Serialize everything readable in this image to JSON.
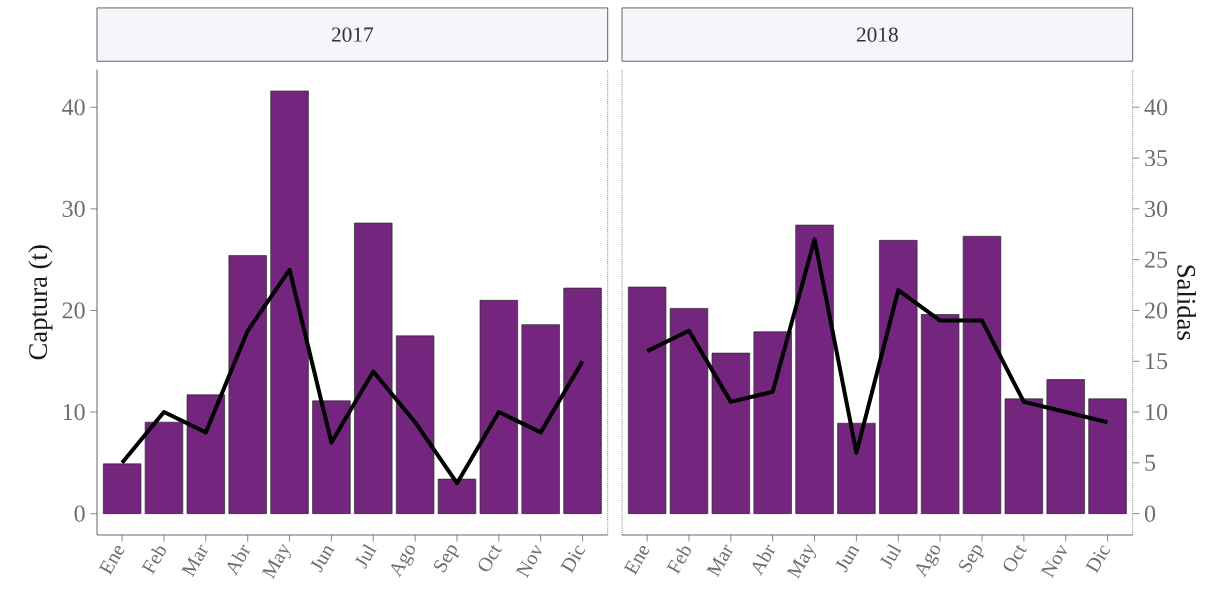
{
  "chart_data": [
    {
      "type": "bar",
      "title": "2017",
      "ylabel": "Captura (t)",
      "categories": [
        "Ene",
        "Feb",
        "Mar",
        "Abr",
        "May",
        "Jun",
        "Jul",
        "Ago",
        "Sep",
        "Oct",
        "Nov",
        "Dic"
      ],
      "series": [
        {
          "color": "#74267f",
          "values": [
            4.9,
            9.0,
            11.7,
            25.4,
            41.6,
            11.1,
            28.6,
            17.5,
            3.4,
            21.0,
            18.6,
            22.2
          ]
        },
        {
          "type": "line",
          "color": "#000000",
          "values": [
            5,
            10,
            8,
            18,
            24,
            7,
            14,
            9,
            3,
            10,
            8,
            15
          ]
        }
      ],
      "ylim": [
        -2.1,
        43.7
      ],
      "yticks": [
        0,
        10,
        20,
        30,
        40
      ]
    },
    {
      "type": "bar",
      "title": "2018",
      "y2label": "Salidas",
      "categories": [
        "Ene",
        "Feb",
        "Mar",
        "Abr",
        "May",
        "Jun",
        "Jul",
        "Ago",
        "Sep",
        "Oct",
        "Nov",
        "Dic"
      ],
      "series": [
        {
          "color": "#74267f",
          "values": [
            22.3,
            20.2,
            15.8,
            17.9,
            28.4,
            8.9,
            26.9,
            19.6,
            27.3,
            11.3,
            13.2,
            11.3
          ]
        },
        {
          "type": "line",
          "color": "#000000",
          "axis": "y2",
          "values": [
            16,
            18,
            11,
            12,
            27,
            6,
            22,
            19,
            19,
            11,
            10,
            9
          ]
        }
      ],
      "ylim": [
        -2.1,
        43.7
      ],
      "y2lim": [
        -2.1,
        43.7
      ],
      "y2ticks": [
        0,
        5,
        10,
        15,
        20,
        25,
        30,
        35,
        40
      ]
    }
  ]
}
